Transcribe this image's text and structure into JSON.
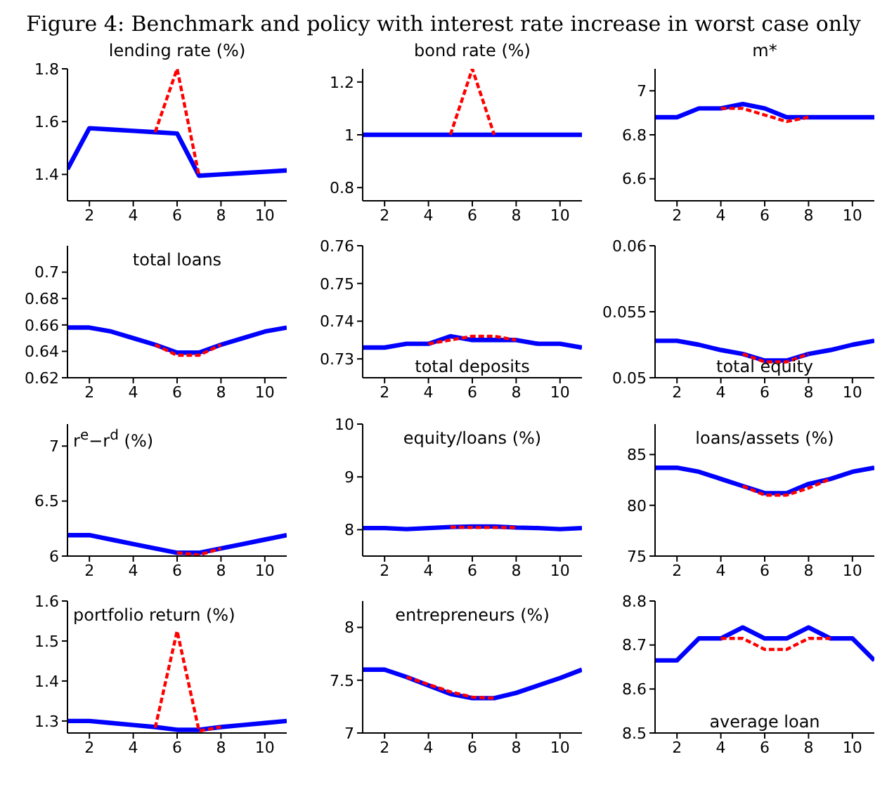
{
  "chart_data": [
    {
      "type": "line",
      "title": "lending rate (%)",
      "annotations": [
        "Figure 4: Benchmark and policy with interest rate increase in worst case only"
      ],
      "x": [
        1,
        2,
        3,
        4,
        5,
        6,
        7,
        8,
        9,
        10,
        11
      ],
      "xlim": [
        1,
        11
      ],
      "xticks": [
        2,
        4,
        6,
        8,
        10
      ],
      "ylim": [
        1.3,
        1.8
      ],
      "yticks": [
        1.4,
        1.6,
        1.8
      ],
      "series": [
        {
          "color": "#ff0000",
          "line_style": "dashed",
          "values": [
            null,
            null,
            null,
            null,
            1.56,
            1.8,
            1.395,
            null,
            null,
            null,
            null
          ]
        },
        {
          "color": "#0000ff",
          "line_style": "solid",
          "values": [
            1.42,
            1.575,
            1.57,
            1.565,
            1.56,
            1.555,
            1.395,
            1.4,
            1.405,
            1.41,
            1.415
          ]
        }
      ]
    },
    {
      "type": "line",
      "title": "bond rate (%)",
      "x": [
        1,
        2,
        3,
        4,
        5,
        6,
        7,
        8,
        9,
        10,
        11
      ],
      "xlim": [
        1,
        11
      ],
      "xticks": [
        2,
        4,
        6,
        8,
        10
      ],
      "ylim": [
        0.75,
        1.25
      ],
      "yticks": [
        0.8,
        1,
        1.2
      ],
      "series": [
        {
          "color": "#ff0000",
          "line_style": "dashed",
          "values": [
            null,
            null,
            null,
            null,
            1,
            1.25,
            1,
            null,
            null,
            null,
            null
          ]
        },
        {
          "color": "#0000ff",
          "line_style": "solid",
          "values": [
            1,
            1,
            1,
            1,
            1,
            1,
            1,
            1,
            1,
            1,
            1
          ]
        }
      ]
    },
    {
      "type": "line",
      "title": "m*",
      "x": [
        1,
        2,
        3,
        4,
        5,
        6,
        7,
        8,
        9,
        10,
        11
      ],
      "xlim": [
        1,
        11
      ],
      "xticks": [
        2,
        4,
        6,
        8,
        10
      ],
      "ylim": [
        6.5,
        7.1
      ],
      "yticks": [
        6.6,
        6.8,
        7
      ],
      "series": [
        {
          "color": "#ff0000",
          "line_style": "dashed",
          "values": [
            null,
            null,
            null,
            6.92,
            6.92,
            6.89,
            6.86,
            6.88,
            null,
            null,
            null
          ]
        },
        {
          "color": "#0000ff",
          "line_style": "solid",
          "values": [
            6.88,
            6.88,
            6.92,
            6.92,
            6.94,
            6.92,
            6.88,
            6.88,
            6.88,
            6.88,
            6.88
          ]
        }
      ]
    },
    {
      "type": "line",
      "title": "total loans",
      "x": [
        1,
        2,
        3,
        4,
        5,
        6,
        7,
        8,
        9,
        10,
        11
      ],
      "xlim": [
        1,
        11
      ],
      "xticks": [
        2,
        4,
        6,
        8,
        10
      ],
      "ylim": [
        0.62,
        0.72
      ],
      "yticks": [
        0.62,
        0.64,
        0.66,
        0.68,
        0.7
      ],
      "series": [
        {
          "color": "#ff0000",
          "line_style": "dashed",
          "values": [
            null,
            null,
            null,
            null,
            0.645,
            0.637,
            0.637,
            0.645,
            null,
            null,
            null
          ]
        },
        {
          "color": "#0000ff",
          "line_style": "solid",
          "values": [
            0.658,
            0.658,
            0.655,
            0.65,
            0.645,
            0.639,
            0.639,
            0.645,
            0.65,
            0.655,
            0.658
          ]
        }
      ]
    },
    {
      "type": "line",
      "title": "total deposits",
      "x": [
        1,
        2,
        3,
        4,
        5,
        6,
        7,
        8,
        9,
        10,
        11
      ],
      "xlim": [
        1,
        11
      ],
      "xticks": [
        2,
        4,
        6,
        8,
        10
      ],
      "ylim": [
        0.725,
        0.76
      ],
      "yticks": [
        0.73,
        0.74,
        0.75,
        0.76
      ],
      "series": [
        {
          "color": "#ff0000",
          "line_style": "dashed",
          "values": [
            null,
            null,
            null,
            0.734,
            0.735,
            0.736,
            0.736,
            0.735,
            null,
            null,
            null
          ]
        },
        {
          "color": "#0000ff",
          "line_style": "solid",
          "values": [
            0.733,
            0.733,
            0.734,
            0.734,
            0.736,
            0.735,
            0.735,
            0.735,
            0.734,
            0.734,
            0.733
          ]
        }
      ]
    },
    {
      "type": "line",
      "title": "total equity",
      "x": [
        1,
        2,
        3,
        4,
        5,
        6,
        7,
        8,
        9,
        10,
        11
      ],
      "xlim": [
        1,
        11
      ],
      "xticks": [
        2,
        4,
        6,
        8,
        10
      ],
      "ylim": [
        0.05,
        0.06
      ],
      "yticks": [
        0.05,
        0.055,
        0.06
      ],
      "series": [
        {
          "color": "#ff0000",
          "line_style": "dashed",
          "values": [
            null,
            null,
            null,
            null,
            0.0518,
            0.0512,
            0.0512,
            0.0518,
            null,
            null,
            null
          ]
        },
        {
          "color": "#0000ff",
          "line_style": "solid",
          "values": [
            0.0528,
            0.0528,
            0.0525,
            0.0521,
            0.0518,
            0.0513,
            0.0513,
            0.0518,
            0.0521,
            0.0525,
            0.0528
          ]
        }
      ]
    },
    {
      "type": "line",
      "title": "r$^{e}$−r$^{d}$ (%)",
      "x": [
        1,
        2,
        3,
        4,
        5,
        6,
        7,
        8,
        9,
        10,
        11
      ],
      "xlim": [
        1,
        11
      ],
      "xticks": [
        2,
        4,
        6,
        8,
        10
      ],
      "ylim": [
        6,
        7.2
      ],
      "yticks": [
        6,
        6.5,
        7
      ],
      "series": [
        {
          "color": "#ff0000",
          "line_style": "dashed",
          "values": [
            null,
            null,
            null,
            null,
            null,
            6.03,
            6.01,
            6.07,
            null,
            null,
            null
          ]
        },
        {
          "color": "#0000ff",
          "line_style": "solid",
          "values": [
            6.19,
            6.19,
            6.15,
            6.11,
            6.07,
            6.03,
            6.03,
            6.07,
            6.11,
            6.15,
            6.19
          ]
        }
      ]
    },
    {
      "type": "line",
      "title": "equity/loans (%)",
      "x": [
        1,
        2,
        3,
        4,
        5,
        6,
        7,
        8,
        9,
        10,
        11
      ],
      "xlim": [
        1,
        11
      ],
      "xticks": [
        2,
        4,
        6,
        8,
        10
      ],
      "ylim": [
        7.5,
        10
      ],
      "yticks": [
        8,
        9,
        10
      ],
      "series": [
        {
          "color": "#ff0000",
          "line_style": "dashed",
          "values": [
            null,
            null,
            null,
            null,
            8.05,
            8.04,
            8.04,
            8.04,
            null,
            null,
            null
          ]
        },
        {
          "color": "#0000ff",
          "line_style": "solid",
          "values": [
            8.03,
            8.03,
            8.01,
            8.03,
            8.05,
            8.06,
            8.06,
            8.04,
            8.03,
            8.01,
            8.03
          ]
        }
      ]
    },
    {
      "type": "line",
      "title": "loans/assets (%)",
      "x": [
        1,
        2,
        3,
        4,
        5,
        6,
        7,
        8,
        9,
        10,
        11
      ],
      "xlim": [
        1,
        11
      ],
      "xticks": [
        2,
        4,
        6,
        8,
        10
      ],
      "ylim": [
        75,
        88
      ],
      "yticks": [
        75,
        80,
        85
      ],
      "series": [
        {
          "color": "#ff0000",
          "line_style": "dashed",
          "values": [
            null,
            null,
            null,
            null,
            81.9,
            81,
            81,
            81.7,
            82.6,
            null,
            null
          ]
        },
        {
          "color": "#0000ff",
          "line_style": "solid",
          "values": [
            83.7,
            83.7,
            83.3,
            82.6,
            81.9,
            81.2,
            81.2,
            82.1,
            82.6,
            83.3,
            83.7
          ]
        }
      ]
    },
    {
      "type": "line",
      "title": "portfolio return (%)",
      "x": [
        1,
        2,
        3,
        4,
        5,
        6,
        7,
        8,
        9,
        10,
        11
      ],
      "xlim": [
        1,
        11
      ],
      "xticks": [
        2,
        4,
        6,
        8,
        10
      ],
      "ylim": [
        1.27,
        1.6
      ],
      "yticks": [
        1.3,
        1.4,
        1.5,
        1.6
      ],
      "series": [
        {
          "color": "#ff0000",
          "line_style": "dashed",
          "values": [
            null,
            null,
            null,
            null,
            1.283,
            1.525,
            1.275,
            1.285,
            null,
            null,
            null
          ]
        },
        {
          "color": "#0000ff",
          "line_style": "solid",
          "values": [
            1.3,
            1.3,
            1.295,
            1.29,
            1.285,
            1.278,
            1.278,
            1.285,
            1.29,
            1.295,
            1.3
          ]
        }
      ]
    },
    {
      "type": "line",
      "title": "entrepreneurs (%)",
      "x": [
        1,
        2,
        3,
        4,
        5,
        6,
        7,
        8,
        9,
        10,
        11
      ],
      "xlim": [
        1,
        11
      ],
      "xticks": [
        2,
        4,
        6,
        8,
        10
      ],
      "ylim": [
        7,
        8.25
      ],
      "yticks": [
        7,
        7.5,
        8
      ],
      "series": [
        {
          "color": "#ff0000",
          "line_style": "dashed",
          "values": [
            null,
            null,
            7.53,
            7.46,
            7.39,
            7.34,
            7.33,
            null,
            null,
            null,
            null
          ]
        },
        {
          "color": "#0000ff",
          "line_style": "solid",
          "values": [
            7.6,
            7.6,
            7.53,
            7.45,
            7.37,
            7.33,
            7.33,
            7.38,
            7.45,
            7.52,
            7.6
          ]
        }
      ]
    },
    {
      "type": "line",
      "title": "average loan",
      "x": [
        1,
        2,
        3,
        4,
        5,
        6,
        7,
        8,
        9,
        10,
        11
      ],
      "xlim": [
        1,
        11
      ],
      "xticks": [
        2,
        4,
        6,
        8,
        10
      ],
      "ylim": [
        8.5,
        8.8
      ],
      "yticks": [
        8.5,
        8.6,
        8.7,
        8.8
      ],
      "series": [
        {
          "color": "#ff0000",
          "line_style": "dashed",
          "values": [
            null,
            null,
            null,
            8.715,
            8.715,
            8.69,
            8.69,
            8.715,
            8.715,
            null,
            null
          ]
        },
        {
          "color": "#0000ff",
          "line_style": "solid",
          "values": [
            8.665,
            8.665,
            8.715,
            8.715,
            8.74,
            8.715,
            8.715,
            8.74,
            8.715,
            8.715,
            8.665
          ]
        }
      ]
    }
  ]
}
